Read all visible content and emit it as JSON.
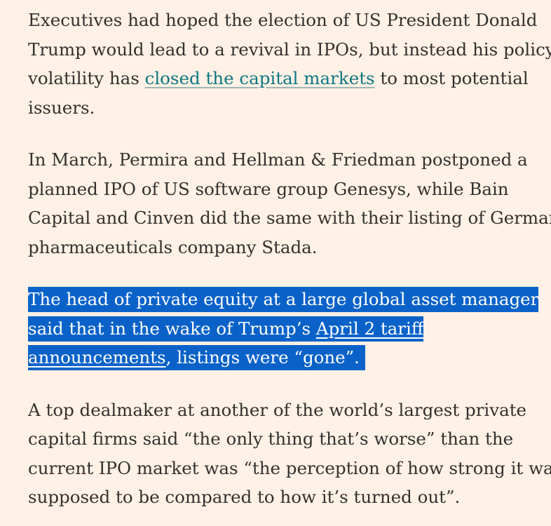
{
  "article": {
    "paragraphs": [
      {
        "lines": [
          [
            "Executives had hoped the election of US President Donald"
          ],
          [
            "Trump would lead to a revival in IPOs, but instead his policy"
          ],
          [
            "volatility has ",
            {
              "link": "closed the capital markets"
            },
            " to most potential"
          ],
          [
            "issuers."
          ]
        ]
      },
      {
        "lines": [
          [
            "In March, Permira and Hellman & Friedman postponed a"
          ],
          [
            "planned IPO of US software group Genesys, while Bain"
          ],
          [
            "Capital and Cinven did the same with their listing of German"
          ],
          [
            "pharmaceuticals company Stada."
          ]
        ]
      },
      {
        "selected": true,
        "lines": [
          [
            "The head of private equity at a large global asset manager"
          ],
          [
            "said that in the wake of Trump’s ",
            {
              "link": "April 2 tariff"
            }
          ],
          [
            {
              "link": "announcements"
            },
            ", listings were “gone”. "
          ]
        ]
      },
      {
        "lines": [
          [
            "A top dealmaker at another of the world’s largest private"
          ],
          [
            "capital firms said “the only thing that’s worse” than the"
          ],
          [
            "current IPO market was “the perception of how strong it was"
          ],
          [
            "supposed to be compared to how it’s turned out”."
          ]
        ]
      }
    ]
  },
  "colors": {
    "background": "#fff1e5",
    "text": "#33302e",
    "link": "#0d7680",
    "selection": "#0a62c9"
  }
}
